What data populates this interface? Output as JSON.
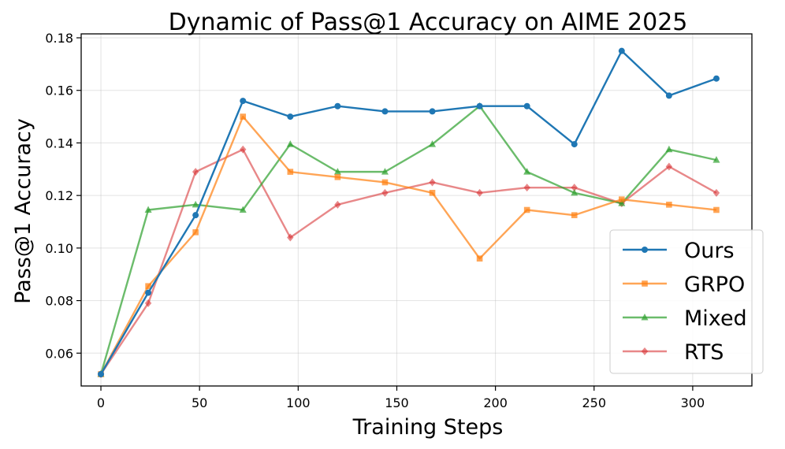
{
  "chart_data": {
    "type": "line",
    "title": "Dynamic of Pass@1 Accuracy on AIME 2025",
    "xlabel": "Training Steps",
    "ylabel": "Pass@1 Accuracy",
    "xlim": [
      -10,
      330
    ],
    "ylim": [
      0.0475,
      0.1815
    ],
    "xticks": [
      "0",
      "50",
      "100",
      "150",
      "200",
      "250",
      "300"
    ],
    "yticks": [
      "0.06",
      "0.08",
      "0.10",
      "0.12",
      "0.14",
      "0.16",
      "0.18"
    ],
    "grid": true,
    "legend_position": "bottom-right",
    "x": [
      0,
      24,
      48,
      72,
      96,
      120,
      144,
      168,
      192,
      216,
      240,
      264,
      288,
      312
    ],
    "series": [
      {
        "name": "Ours",
        "color": "#1f77b4",
        "marker": "circle",
        "values": [
          0.052,
          0.083,
          0.1125,
          0.156,
          0.15,
          0.154,
          0.152,
          0.152,
          0.154,
          0.154,
          0.1395,
          0.175,
          0.158,
          0.1645
        ]
      },
      {
        "name": "GRPO",
        "color": "#ff7f0e",
        "marker": "square",
        "values": [
          0.052,
          0.0855,
          0.106,
          0.15,
          0.129,
          0.127,
          0.125,
          0.121,
          0.096,
          0.1145,
          0.1125,
          0.1185,
          0.1165,
          0.1145
        ]
      },
      {
        "name": "Mixed",
        "color": "#2ca02c",
        "marker": "triangle",
        "values": [
          0.052,
          0.1145,
          0.1165,
          0.1145,
          0.1395,
          0.129,
          0.129,
          0.1395,
          0.154,
          0.129,
          0.121,
          0.117,
          0.1375,
          0.1335
        ]
      },
      {
        "name": "RTS",
        "color": "#d62728",
        "marker": "diamond",
        "values": [
          0.052,
          0.079,
          0.129,
          0.1375,
          0.104,
          0.1165,
          0.121,
          0.125,
          0.121,
          0.123,
          0.123,
          0.117,
          0.131,
          0.121
        ]
      }
    ]
  }
}
